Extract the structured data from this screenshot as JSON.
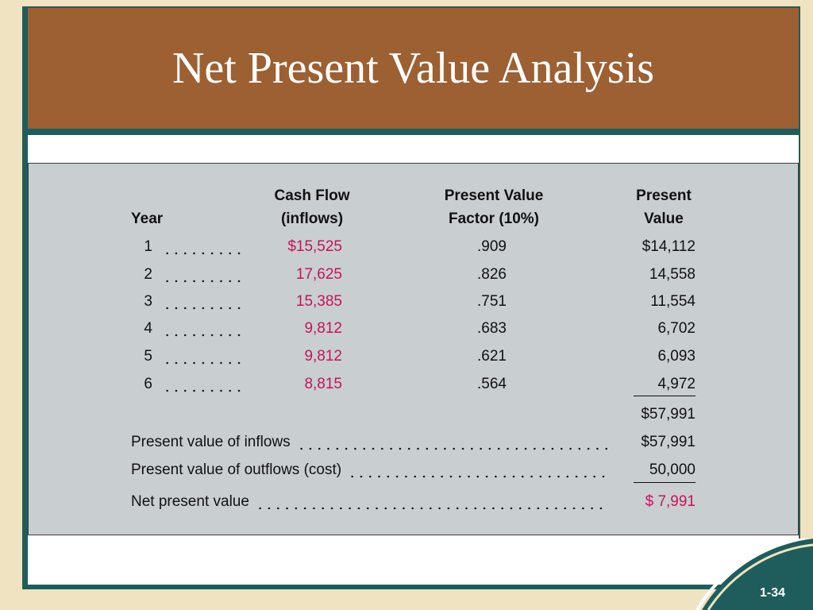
{
  "header": {
    "title": "Net Present Value Analysis"
  },
  "table": {
    "columns": [
      [
        "Year"
      ],
      [
        "Cash Flow",
        "(inflows)"
      ],
      [
        "Present Value",
        "Factor (10%)"
      ],
      [
        "Present",
        "Value"
      ]
    ],
    "rows": [
      [
        "1",
        "$15,525",
        ".909",
        "$14,112"
      ],
      [
        "2",
        "17,625",
        ".826",
        "14,558"
      ],
      [
        "3",
        "15,385",
        ".751",
        "11,554"
      ],
      [
        "4",
        "9,812",
        ".683",
        "6,702"
      ],
      [
        "5",
        "9,812",
        ".621",
        "6,093"
      ],
      [
        "6",
        "8,815",
        ".564",
        "4,972"
      ]
    ],
    "total": "$57,991"
  },
  "summary": [
    [
      "Present value of inflows",
      "$57,991"
    ],
    [
      "Present value of outflows (cost)",
      "50,000"
    ],
    [
      "Net present value",
      "$ 7,991"
    ]
  ],
  "footer": {
    "page": "1-34"
  }
}
